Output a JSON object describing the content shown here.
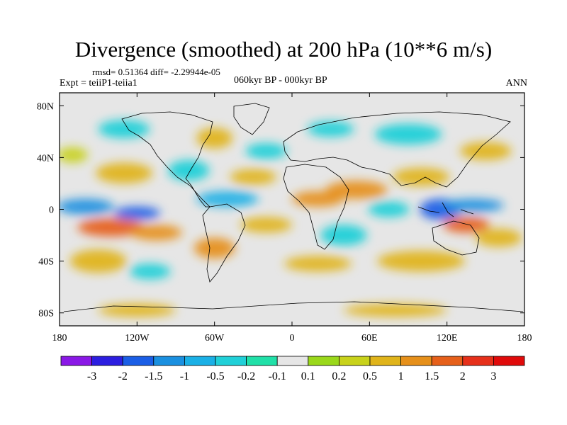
{
  "header": {
    "title": "Divergence (smoothed) at 200 hPa (10**6 m/s)",
    "stats": "rmsd= 0.51364 diff= -2.29944e-05",
    "expt": "Expt = teiiP1-teiia1",
    "period": "060kyr BP - 000kyr BP",
    "season": "ANN"
  },
  "chart_data": {
    "type": "heatmap",
    "title": "Divergence (smoothed) at 200 hPa (10**6 m/s)",
    "xlim": [
      -180,
      180
    ],
    "ylim": [
      -90,
      90
    ],
    "x_ticks": [
      {
        "value": -180,
        "label": "180"
      },
      {
        "value": -120,
        "label": "120W"
      },
      {
        "value": -60,
        "label": "60W"
      },
      {
        "value": 0,
        "label": "0"
      },
      {
        "value": 60,
        "label": "60E"
      },
      {
        "value": 120,
        "label": "120E"
      },
      {
        "value": 180,
        "label": "180"
      }
    ],
    "y_ticks": [
      {
        "value": 80,
        "label": "80N"
      },
      {
        "value": 40,
        "label": "40N"
      },
      {
        "value": 0,
        "label": "0"
      },
      {
        "value": -40,
        "label": "40S"
      },
      {
        "value": -80,
        "label": "80S"
      }
    ],
    "colorbar": {
      "labels": [
        "-3",
        "-2",
        "-1.5",
        "-1",
        "-0.5",
        "-0.2",
        "-0.1",
        "0.1",
        "0.2",
        "0.5",
        "1",
        "1.5",
        "2",
        "3"
      ],
      "colors": [
        "#8a18e6",
        "#2c1ee0",
        "#1a5ee6",
        "#1a90e0",
        "#1ab0e6",
        "#20d0d8",
        "#20e0a8",
        "#e6e6e6",
        "#9ad81a",
        "#c8d21a",
        "#e0b41a",
        "#e6901a",
        "#e6601a",
        "#e6301a",
        "#e00a0a"
      ]
    },
    "regions": [
      {
        "lon": -160,
        "lat": 2,
        "rx": 22,
        "ry": 6,
        "value": -1.5
      },
      {
        "lon": -120,
        "lat": -3,
        "rx": 18,
        "ry": 5,
        "value": -2
      },
      {
        "lon": -140,
        "lat": -14,
        "rx": 26,
        "ry": 7,
        "value": 1.5
      },
      {
        "lon": -105,
        "lat": -18,
        "rx": 20,
        "ry": 6,
        "value": 1
      },
      {
        "lon": -150,
        "lat": -40,
        "rx": 22,
        "ry": 9,
        "value": 0.5
      },
      {
        "lon": -110,
        "lat": -48,
        "rx": 16,
        "ry": 6,
        "value": -0.5
      },
      {
        "lon": -130,
        "lat": 28,
        "rx": 22,
        "ry": 8,
        "value": 0.5
      },
      {
        "lon": -170,
        "lat": 42,
        "rx": 12,
        "ry": 6,
        "value": 0.2
      },
      {
        "lon": -80,
        "lat": 30,
        "rx": 16,
        "ry": 8,
        "value": -0.5
      },
      {
        "lon": -60,
        "lat": 55,
        "rx": 14,
        "ry": 8,
        "value": 0.5
      },
      {
        "lon": -50,
        "lat": 8,
        "rx": 24,
        "ry": 6,
        "value": -1
      },
      {
        "lon": -60,
        "lat": -30,
        "rx": 16,
        "ry": 8,
        "value": 1
      },
      {
        "lon": -20,
        "lat": -12,
        "rx": 20,
        "ry": 6,
        "value": 0.5
      },
      {
        "lon": -30,
        "lat": 25,
        "rx": 18,
        "ry": 6,
        "value": 0.5
      },
      {
        "lon": -20,
        "lat": 45,
        "rx": 16,
        "ry": 6,
        "value": -0.5
      },
      {
        "lon": 20,
        "lat": 8,
        "rx": 20,
        "ry": 6,
        "value": 1
      },
      {
        "lon": 50,
        "lat": 15,
        "rx": 24,
        "ry": 7,
        "value": 1
      },
      {
        "lon": 75,
        "lat": 0,
        "rx": 16,
        "ry": 6,
        "value": -0.5
      },
      {
        "lon": 40,
        "lat": -20,
        "rx": 18,
        "ry": 8,
        "value": -0.5
      },
      {
        "lon": 20,
        "lat": -42,
        "rx": 26,
        "ry": 6,
        "value": 0.5
      },
      {
        "lon": 100,
        "lat": 25,
        "rx": 22,
        "ry": 7,
        "value": 0.5
      },
      {
        "lon": 115,
        "lat": 0,
        "rx": 16,
        "ry": 8,
        "value": -2
      },
      {
        "lon": 140,
        "lat": 3,
        "rx": 24,
        "ry": 5,
        "value": -1.5
      },
      {
        "lon": 135,
        "lat": -12,
        "rx": 18,
        "ry": 6,
        "value": 1.5
      },
      {
        "lon": 160,
        "lat": -22,
        "rx": 18,
        "ry": 7,
        "value": 0.5
      },
      {
        "lon": 100,
        "lat": -40,
        "rx": 34,
        "ry": 8,
        "value": 0.5
      },
      {
        "lon": 90,
        "lat": 58,
        "rx": 26,
        "ry": 8,
        "value": -0.5
      },
      {
        "lon": 150,
        "lat": 45,
        "rx": 20,
        "ry": 7,
        "value": 0.5
      },
      {
        "lon": 30,
        "lat": 62,
        "rx": 18,
        "ry": 6,
        "value": -0.5
      },
      {
        "lon": -130,
        "lat": 62,
        "rx": 20,
        "ry": 7,
        "value": -0.5
      },
      {
        "lon": -120,
        "lat": -78,
        "rx": 30,
        "ry": 5,
        "value": 0.5
      },
      {
        "lon": 80,
        "lat": -78,
        "rx": 40,
        "ry": 5,
        "value": 0.5
      }
    ]
  }
}
